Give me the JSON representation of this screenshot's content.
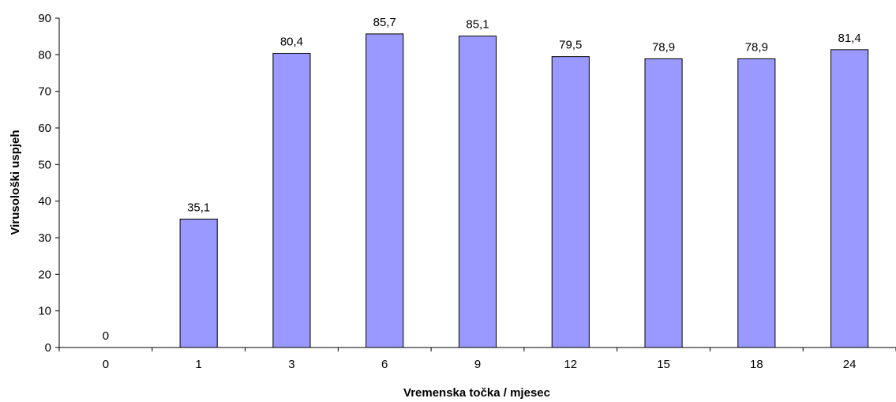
{
  "chart_data": {
    "type": "bar",
    "categories": [
      "0",
      "1",
      "3",
      "6",
      "9",
      "12",
      "15",
      "18",
      "24"
    ],
    "values": [
      0,
      35.1,
      80.4,
      85.7,
      85.1,
      79.5,
      78.9,
      78.9,
      81.4
    ],
    "data_labels": [
      "0",
      "35,1",
      "80,4",
      "85,7",
      "85,1",
      "79,5",
      "78,9",
      "78,9",
      "81,4"
    ],
    "y_ticks": [
      0,
      10,
      20,
      30,
      40,
      50,
      60,
      70,
      80,
      90
    ],
    "xlabel": "Vremenska točka / mjesec",
    "ylabel": "Virusološki uspjeh",
    "ylim": [
      0,
      90
    ],
    "grid": false,
    "legend": "none",
    "bar_color": "#9999ff",
    "bar_stroke": "#000000"
  }
}
